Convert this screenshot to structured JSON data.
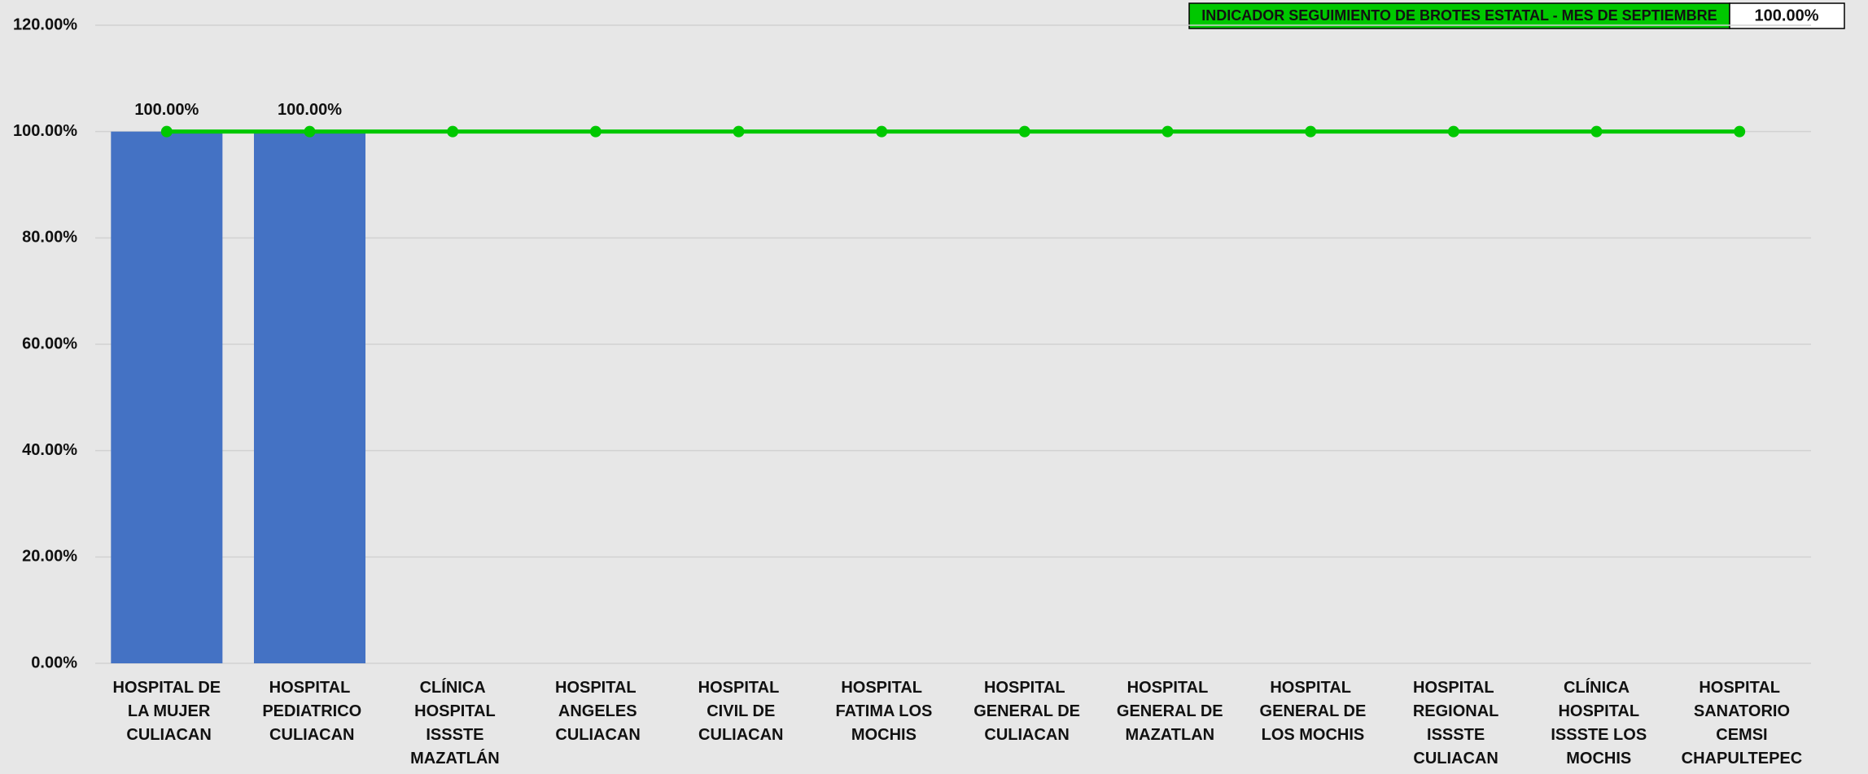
{
  "chart_data": {
    "type": "bar-line",
    "categories": [
      "HOSPITAL DE LA MUJER CULIACAN",
      "HOSPITAL PEDIATRICO CULIACAN",
      "CLÍNICA HOSPITAL ISSSTE MAZATLÁN",
      "HOSPITAL ANGELES CULIACAN",
      "HOSPITAL CIVIL DE CULIACAN",
      "HOSPITAL FATIMA LOS MOCHIS",
      "HOSPITAL GENERAL DE CULIACAN",
      "HOSPITAL GENERAL DE MAZATLAN",
      "HOSPITAL GENERAL DE LOS MOCHIS",
      "HOSPITAL REGIONAL ISSSTE CULIACAN",
      "CLÍNICA HOSPITAL ISSSTE LOS MOCHIS",
      "HOSPITAL SANATORIO CEMSI CHAPULTEPEC"
    ],
    "series": [
      {
        "type": "bar",
        "color": "#4472c4",
        "values": [
          100,
          100,
          null,
          null,
          null,
          null,
          null,
          null,
          null,
          null,
          null,
          null
        ],
        "value_labels": [
          "100.00%",
          "100.00%",
          null,
          null,
          null,
          null,
          null,
          null,
          null,
          null,
          null,
          null
        ]
      },
      {
        "type": "line",
        "color": "#00c800",
        "values": [
          100,
          100,
          100,
          100,
          100,
          100,
          100,
          100,
          100,
          100,
          100,
          100
        ]
      }
    ],
    "indicator": {
      "name": "INDICADOR SEGUIMIENTO DE BROTES ESTATAL - MES DE SEPTIEMBRE",
      "value": 100,
      "value_label": "100.00%",
      "color": "#00c800"
    },
    "ylim": [
      0,
      120
    ],
    "yticks": [
      {
        "value": 0,
        "label": "0.00%"
      },
      {
        "value": 20,
        "label": "20.00%"
      },
      {
        "value": 40,
        "label": "40.00%"
      },
      {
        "value": 60,
        "label": "60.00%"
      },
      {
        "value": 80,
        "label": "80.00%"
      },
      {
        "value": 100,
        "label": "100.00%"
      },
      {
        "value": 120,
        "label": "120.00%"
      }
    ],
    "grid": true
  }
}
